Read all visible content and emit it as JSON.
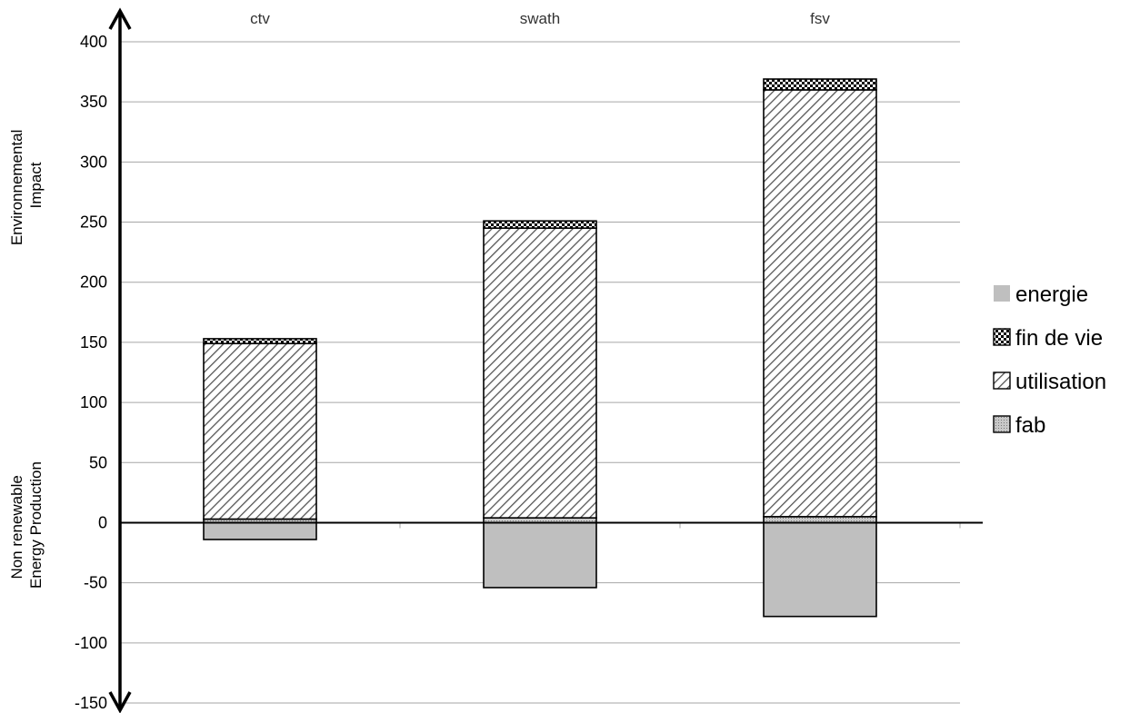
{
  "chart_data": {
    "type": "bar",
    "stacked": true,
    "categories": [
      "ctv",
      "swath",
      "fsv"
    ],
    "series": [
      {
        "name": "fab",
        "pattern": "dots-gray",
        "values": [
          3,
          4,
          5
        ]
      },
      {
        "name": "utilisation",
        "pattern": "diagonal-hatch",
        "values": [
          146,
          241,
          355
        ]
      },
      {
        "name": "fin de vie",
        "pattern": "checkerboard",
        "values": [
          4,
          6,
          9
        ]
      },
      {
        "name": "energie",
        "pattern": "solid-gray",
        "values": [
          -14,
          -54,
          -78
        ]
      }
    ],
    "legend_order": [
      "energie",
      "fin de vie",
      "utilisation",
      "fab"
    ],
    "legend_position": "right",
    "ylim": [
      -150,
      400
    ],
    "yticks": [
      400,
      350,
      300,
      250,
      200,
      150,
      100,
      50,
      0,
      -50,
      -100,
      -150
    ],
    "ylabel_top": [
      "Environnemental",
      "Impact"
    ],
    "ylabel_bottom": [
      "Non renewable",
      "Energy Production"
    ],
    "category_labels_position": "top",
    "grid": true,
    "colors": {
      "energie": "#bfbfbf",
      "fab": "#bfbfbf",
      "hatch": "#555555",
      "grid": "#a6a6a6",
      "axis": "#000000"
    }
  }
}
